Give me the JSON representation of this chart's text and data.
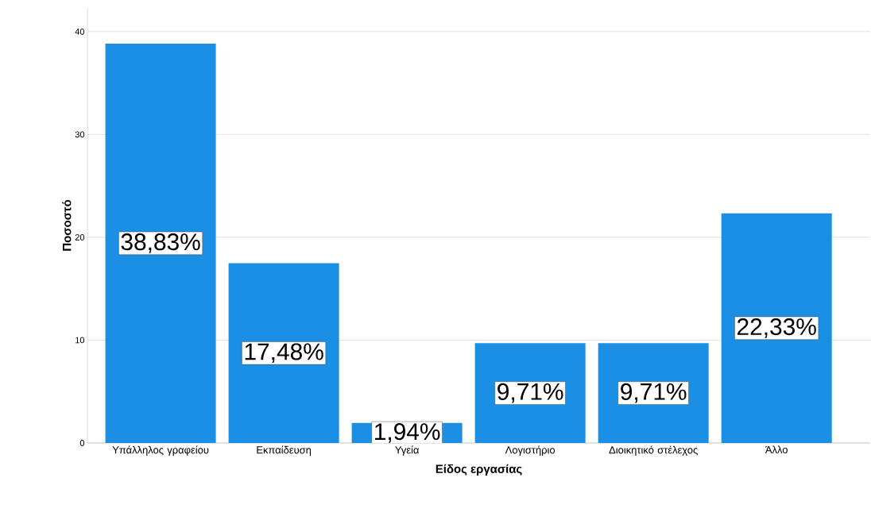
{
  "chart_data": {
    "type": "bar",
    "xlabel": "Είδος εργασίας",
    "ylabel": "Ποσοστό",
    "categories": [
      "Υπάλληλος γραφείου",
      "Εκπαίδευση",
      "Υγεία",
      "Λογιστήριο",
      "Διοικητικό στέλεχος",
      "Άλλο"
    ],
    "values": [
      38.83,
      17.48,
      1.94,
      9.71,
      9.71,
      22.33
    ],
    "value_labels": [
      "38,83%",
      "17,48%",
      "1,94%",
      "9,71%",
      "9,71%",
      "22,33%"
    ],
    "color": "#1a8fe3",
    "ylim": [
      0,
      42.3
    ],
    "yticks": [
      0,
      10,
      20,
      30,
      40
    ],
    "grid": "y"
  }
}
